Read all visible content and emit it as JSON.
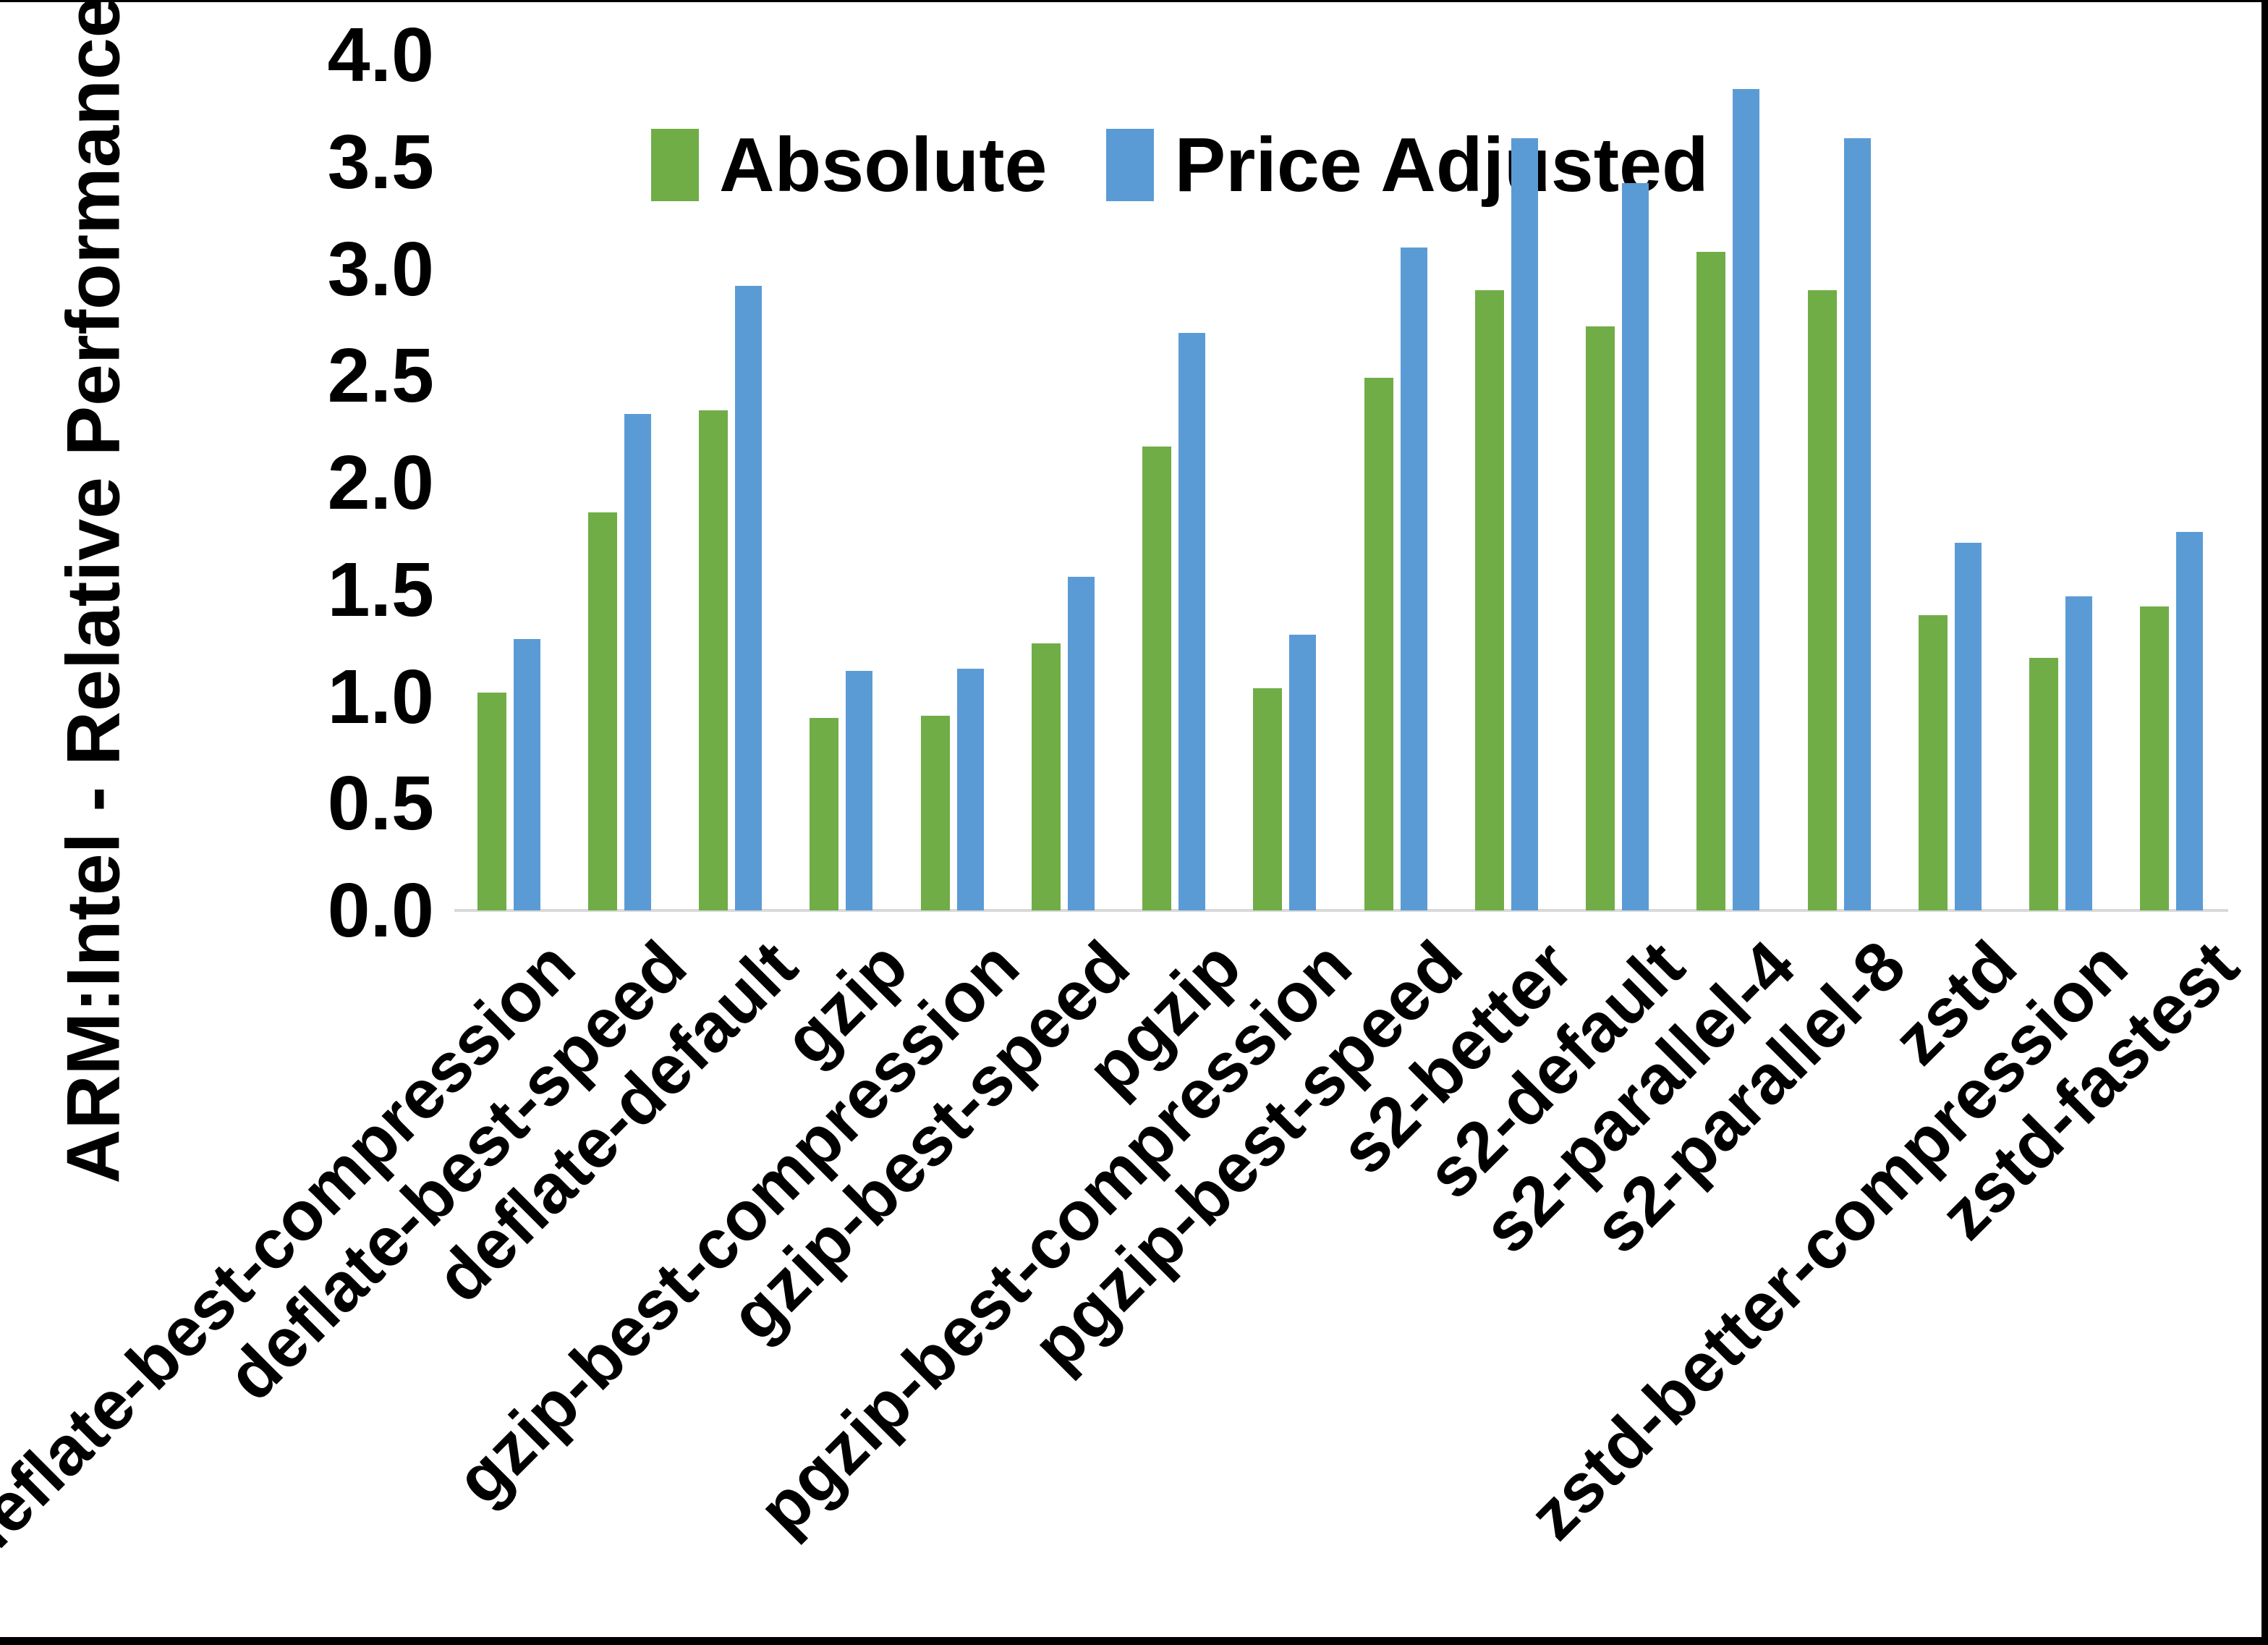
{
  "chart_data": {
    "type": "bar",
    "title": "",
    "xlabel": "",
    "ylabel": "ARM:Intel - Relative Performance",
    "ylim": [
      0.0,
      4.0
    ],
    "ytick_step": 0.5,
    "ytick_labels": [
      "4.0",
      "3.5",
      "3.0",
      "2.5",
      "2.0",
      "1.5",
      "1.0",
      "0.5",
      "0.0"
    ],
    "grid": false,
    "legend_position": "top-center",
    "background_color": "#ffffff",
    "axis_line_color": "#d9d9d9",
    "text_color": "#000000",
    "categories": [
      "deflate-best-compression",
      "deflate-best-speed",
      "deflate-default",
      "gzip",
      "gzip-best-compression",
      "gzip-best-speed",
      "pgzip",
      "pgzip-best-compression",
      "pgzip-best-speed",
      "s2-better",
      "s2-default",
      "s2-parallel-4",
      "s2-parallel-8",
      "zstd",
      "zstd-better-compression",
      "zstd-fastest"
    ],
    "series": [
      {
        "name": "Absolute",
        "color": "#70AD47",
        "values": [
          1.02,
          1.86,
          2.34,
          0.9,
          0.91,
          1.25,
          2.17,
          1.04,
          2.49,
          2.9,
          2.73,
          3.08,
          2.9,
          1.38,
          1.18,
          1.42
        ]
      },
      {
        "name": "Price Adjusted",
        "color": "#5B9BD5",
        "values": [
          1.27,
          2.32,
          2.92,
          1.12,
          1.13,
          1.56,
          2.7,
          1.29,
          3.1,
          3.61,
          3.4,
          3.84,
          3.61,
          1.72,
          1.47,
          1.77
        ]
      }
    ]
  }
}
